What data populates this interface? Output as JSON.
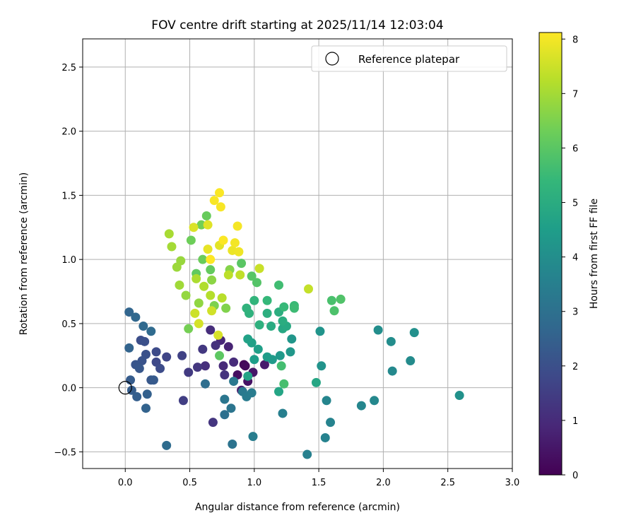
{
  "chart_data": {
    "type": "scatter",
    "title": "FOV centre drift starting at 2025/11/14 12:03:04",
    "xlabel": "Angular distance from reference (arcmin)",
    "ylabel": "Rotation from reference (arcmin)",
    "xlim": [
      -0.33,
      3.0
    ],
    "ylim": [
      -0.63,
      2.72
    ],
    "xticks": [
      "0.0",
      "0.5",
      "1.0",
      "1.5",
      "2.0",
      "2.5",
      "3.0"
    ],
    "yticks": [
      "−0.5",
      "0.0",
      "0.5",
      "1.0",
      "1.5",
      "2.0",
      "2.5"
    ],
    "grid": true,
    "legend": {
      "position": "upper right",
      "label": "Reference platepar"
    },
    "reference_point": {
      "x": 0.0,
      "y": 0.0
    },
    "colorbar": {
      "label": "Hours from first FF file",
      "range": [
        0,
        8.12
      ],
      "ticks": [
        "0",
        "1",
        "2",
        "3",
        "4",
        "5",
        "6",
        "7",
        "8"
      ],
      "colormap": [
        "#440154",
        "#482878",
        "#3e4989",
        "#31688e",
        "#26828e",
        "#1f9e89",
        "#35b779",
        "#6ece58",
        "#b5de2b",
        "#fde725"
      ]
    },
    "series": [
      {
        "name": "FOV centre",
        "points": [
          {
            "x": 0.92,
            "y": 0.18,
            "h": 0.1
          },
          {
            "x": 0.93,
            "y": 0.17,
            "h": 0.2
          },
          {
            "x": 0.87,
            "y": 0.1,
            "h": 0.3
          },
          {
            "x": 0.95,
            "y": 0.05,
            "h": 0.4
          },
          {
            "x": 0.99,
            "y": 0.12,
            "h": 0.5
          },
          {
            "x": 1.08,
            "y": 0.18,
            "h": 0.6
          },
          {
            "x": 0.9,
            "y": -0.02,
            "h": 0.7
          },
          {
            "x": 0.8,
            "y": 0.32,
            "h": 0.8
          },
          {
            "x": 0.74,
            "y": 0.37,
            "h": 0.9
          },
          {
            "x": 0.76,
            "y": 0.17,
            "h": 0.95
          },
          {
            "x": 0.84,
            "y": 0.2,
            "h": 1.0
          },
          {
            "x": 0.66,
            "y": 0.45,
            "h": 1.05
          },
          {
            "x": 0.62,
            "y": 0.17,
            "h": 1.1
          },
          {
            "x": 0.7,
            "y": 0.33,
            "h": 1.15
          },
          {
            "x": 0.77,
            "y": 0.1,
            "h": 1.2
          },
          {
            "x": 0.68,
            "y": -0.27,
            "h": 1.25
          },
          {
            "x": 0.56,
            "y": 0.16,
            "h": 1.3
          },
          {
            "x": 0.6,
            "y": 0.3,
            "h": 1.35
          },
          {
            "x": 0.49,
            "y": 0.12,
            "h": 1.4
          },
          {
            "x": 0.45,
            "y": -0.1,
            "h": 1.5
          },
          {
            "x": 0.44,
            "y": 0.25,
            "h": 1.6
          },
          {
            "x": 0.32,
            "y": 0.24,
            "h": 1.7
          },
          {
            "x": 0.24,
            "y": 0.2,
            "h": 1.8
          },
          {
            "x": 0.24,
            "y": 0.28,
            "h": 1.85
          },
          {
            "x": 0.27,
            "y": 0.15,
            "h": 1.9
          },
          {
            "x": 0.12,
            "y": 0.37,
            "h": 1.95
          },
          {
            "x": 0.15,
            "y": 0.36,
            "h": 2.0
          },
          {
            "x": 0.16,
            "y": 0.26,
            "h": 2.05
          },
          {
            "x": 0.13,
            "y": 0.21,
            "h": 2.1
          },
          {
            "x": 0.08,
            "y": 0.18,
            "h": 2.15
          },
          {
            "x": 0.11,
            "y": 0.15,
            "h": 2.2
          },
          {
            "x": 0.2,
            "y": 0.06,
            "h": 2.25
          },
          {
            "x": 0.22,
            "y": 0.06,
            "h": 2.3
          },
          {
            "x": 0.04,
            "y": 0.06,
            "h": 2.35
          },
          {
            "x": 0.05,
            "y": -0.02,
            "h": 2.4
          },
          {
            "x": 0.09,
            "y": -0.07,
            "h": 2.45
          },
          {
            "x": 0.17,
            "y": -0.05,
            "h": 2.5
          },
          {
            "x": 0.16,
            "y": -0.16,
            "h": 2.55
          },
          {
            "x": 0.03,
            "y": 0.31,
            "h": 2.6
          },
          {
            "x": 0.03,
            "y": 0.59,
            "h": 2.65
          },
          {
            "x": 0.08,
            "y": 0.55,
            "h": 2.7
          },
          {
            "x": 0.14,
            "y": 0.48,
            "h": 2.75
          },
          {
            "x": 0.2,
            "y": 0.44,
            "h": 2.8
          },
          {
            "x": 0.32,
            "y": -0.45,
            "h": 2.85
          },
          {
            "x": 0.62,
            "y": 0.03,
            "h": 2.9
          },
          {
            "x": 0.77,
            "y": -0.21,
            "h": 3.0
          },
          {
            "x": 0.83,
            "y": -0.44,
            "h": 3.1
          },
          {
            "x": 0.82,
            "y": -0.16,
            "h": 3.15
          },
          {
            "x": 0.77,
            "y": -0.09,
            "h": 3.2
          },
          {
            "x": 0.84,
            "y": 0.05,
            "h": 3.25
          },
          {
            "x": 0.91,
            "y": -0.03,
            "h": 3.3
          },
          {
            "x": 0.94,
            "y": -0.07,
            "h": 3.35
          },
          {
            "x": 0.98,
            "y": -0.04,
            "h": 3.4
          },
          {
            "x": 0.99,
            "y": -0.38,
            "h": 3.45
          },
          {
            "x": 1.22,
            "y": -0.2,
            "h": 3.5
          },
          {
            "x": 1.41,
            "y": -0.52,
            "h": 3.55
          },
          {
            "x": 1.55,
            "y": -0.39,
            "h": 3.6
          },
          {
            "x": 1.59,
            "y": -0.27,
            "h": 3.65
          },
          {
            "x": 1.56,
            "y": -0.1,
            "h": 3.7
          },
          {
            "x": 1.83,
            "y": -0.14,
            "h": 3.75
          },
          {
            "x": 1.93,
            "y": -0.1,
            "h": 3.8
          },
          {
            "x": 2.07,
            "y": 0.13,
            "h": 3.85
          },
          {
            "x": 2.21,
            "y": 0.21,
            "h": 3.9
          },
          {
            "x": 2.06,
            "y": 0.36,
            "h": 3.95
          },
          {
            "x": 1.96,
            "y": 0.45,
            "h": 4.0
          },
          {
            "x": 2.24,
            "y": 0.43,
            "h": 4.05
          },
          {
            "x": 2.59,
            "y": -0.06,
            "h": 4.1
          },
          {
            "x": 1.52,
            "y": 0.17,
            "h": 4.15
          },
          {
            "x": 1.51,
            "y": 0.44,
            "h": 4.2
          },
          {
            "x": 1.29,
            "y": 0.38,
            "h": 4.25
          },
          {
            "x": 1.28,
            "y": 0.28,
            "h": 4.3
          },
          {
            "x": 1.2,
            "y": 0.25,
            "h": 4.35
          },
          {
            "x": 1.14,
            "y": 0.22,
            "h": 4.4
          },
          {
            "x": 1.1,
            "y": 0.24,
            "h": 4.45
          },
          {
            "x": 1.0,
            "y": 0.22,
            "h": 4.5
          },
          {
            "x": 1.03,
            "y": 0.3,
            "h": 4.55
          },
          {
            "x": 0.98,
            "y": 0.35,
            "h": 4.6
          },
          {
            "x": 0.95,
            "y": 0.38,
            "h": 4.65
          },
          {
            "x": 0.95,
            "y": 0.09,
            "h": 4.7
          },
          {
            "x": 1.19,
            "y": -0.03,
            "h": 4.75
          },
          {
            "x": 1.48,
            "y": 0.04,
            "h": 4.8
          },
          {
            "x": 1.22,
            "y": 0.46,
            "h": 4.85
          },
          {
            "x": 1.25,
            "y": 0.48,
            "h": 4.9
          },
          {
            "x": 1.13,
            "y": 0.48,
            "h": 4.95
          },
          {
            "x": 1.22,
            "y": 0.52,
            "h": 5.0
          },
          {
            "x": 1.19,
            "y": 0.59,
            "h": 5.05
          },
          {
            "x": 1.1,
            "y": 0.58,
            "h": 5.1
          },
          {
            "x": 1.04,
            "y": 0.49,
            "h": 5.15
          },
          {
            "x": 0.96,
            "y": 0.58,
            "h": 5.2
          },
          {
            "x": 0.94,
            "y": 0.62,
            "h": 5.25
          },
          {
            "x": 1.0,
            "y": 0.68,
            "h": 5.3
          },
          {
            "x": 1.1,
            "y": 0.68,
            "h": 5.4
          },
          {
            "x": 1.23,
            "y": 0.63,
            "h": 5.45
          },
          {
            "x": 1.31,
            "y": 0.64,
            "h": 5.5
          },
          {
            "x": 1.31,
            "y": 0.62,
            "h": 5.55
          },
          {
            "x": 1.19,
            "y": 0.8,
            "h": 5.6
          },
          {
            "x": 1.21,
            "y": 0.17,
            "h": 5.65
          },
          {
            "x": 1.23,
            "y": 0.03,
            "h": 5.7
          },
          {
            "x": 1.6,
            "y": 0.68,
            "h": 5.75
          },
          {
            "x": 1.62,
            "y": 0.6,
            "h": 5.8
          },
          {
            "x": 1.67,
            "y": 0.69,
            "h": 5.85
          },
          {
            "x": 1.02,
            "y": 0.82,
            "h": 5.9
          },
          {
            "x": 0.98,
            "y": 0.87,
            "h": 5.95
          },
          {
            "x": 0.9,
            "y": 0.97,
            "h": 6.0
          },
          {
            "x": 0.73,
            "y": 0.25,
            "h": 6.05
          },
          {
            "x": 0.55,
            "y": 0.89,
            "h": 6.1
          },
          {
            "x": 0.66,
            "y": 0.92,
            "h": 6.15
          },
          {
            "x": 0.63,
            "y": 1.34,
            "h": 6.2
          },
          {
            "x": 0.6,
            "y": 1.0,
            "h": 6.25
          },
          {
            "x": 0.51,
            "y": 1.15,
            "h": 6.3
          },
          {
            "x": 0.59,
            "y": 1.27,
            "h": 6.35
          },
          {
            "x": 0.49,
            "y": 0.46,
            "h": 6.4
          },
          {
            "x": 0.69,
            "y": 0.64,
            "h": 6.5
          },
          {
            "x": 0.78,
            "y": 0.62,
            "h": 6.55
          },
          {
            "x": 0.81,
            "y": 0.92,
            "h": 6.6
          },
          {
            "x": 0.67,
            "y": 0.84,
            "h": 6.7
          },
          {
            "x": 0.57,
            "y": 0.66,
            "h": 6.75
          },
          {
            "x": 0.47,
            "y": 0.72,
            "h": 6.8
          },
          {
            "x": 0.43,
            "y": 0.99,
            "h": 6.85
          },
          {
            "x": 0.4,
            "y": 0.94,
            "h": 6.9
          },
          {
            "x": 0.42,
            "y": 0.8,
            "h": 6.95
          },
          {
            "x": 0.36,
            "y": 1.1,
            "h": 7.0
          },
          {
            "x": 0.34,
            "y": 1.2,
            "h": 7.05
          },
          {
            "x": 0.55,
            "y": 0.85,
            "h": 7.1
          },
          {
            "x": 0.61,
            "y": 0.79,
            "h": 7.15
          },
          {
            "x": 0.66,
            "y": 0.72,
            "h": 7.2
          },
          {
            "x": 0.75,
            "y": 0.7,
            "h": 7.25
          },
          {
            "x": 0.8,
            "y": 0.88,
            "h": 7.3
          },
          {
            "x": 0.89,
            "y": 0.88,
            "h": 7.35
          },
          {
            "x": 1.42,
            "y": 0.77,
            "h": 7.4
          },
          {
            "x": 1.04,
            "y": 0.93,
            "h": 7.45
          },
          {
            "x": 0.54,
            "y": 0.58,
            "h": 7.5
          },
          {
            "x": 0.67,
            "y": 0.6,
            "h": 7.55
          },
          {
            "x": 0.57,
            "y": 0.5,
            "h": 7.6
          },
          {
            "x": 0.72,
            "y": 0.41,
            "h": 7.65
          },
          {
            "x": 0.53,
            "y": 1.25,
            "h": 7.7
          },
          {
            "x": 0.64,
            "y": 1.27,
            "h": 7.75
          },
          {
            "x": 0.73,
            "y": 1.11,
            "h": 7.8
          },
          {
            "x": 0.64,
            "y": 1.08,
            "h": 7.85
          },
          {
            "x": 0.83,
            "y": 1.07,
            "h": 7.9
          },
          {
            "x": 0.88,
            "y": 1.06,
            "h": 7.95
          },
          {
            "x": 0.85,
            "y": 1.13,
            "h": 8.0
          },
          {
            "x": 0.87,
            "y": 1.26,
            "h": 8.02
          },
          {
            "x": 0.74,
            "y": 1.41,
            "h": 8.04
          },
          {
            "x": 0.69,
            "y": 1.46,
            "h": 8.06
          },
          {
            "x": 0.73,
            "y": 1.52,
            "h": 8.08
          },
          {
            "x": 0.76,
            "y": 1.15,
            "h": 8.1
          },
          {
            "x": 0.66,
            "y": 1.0,
            "h": 8.12
          }
        ]
      }
    ]
  }
}
